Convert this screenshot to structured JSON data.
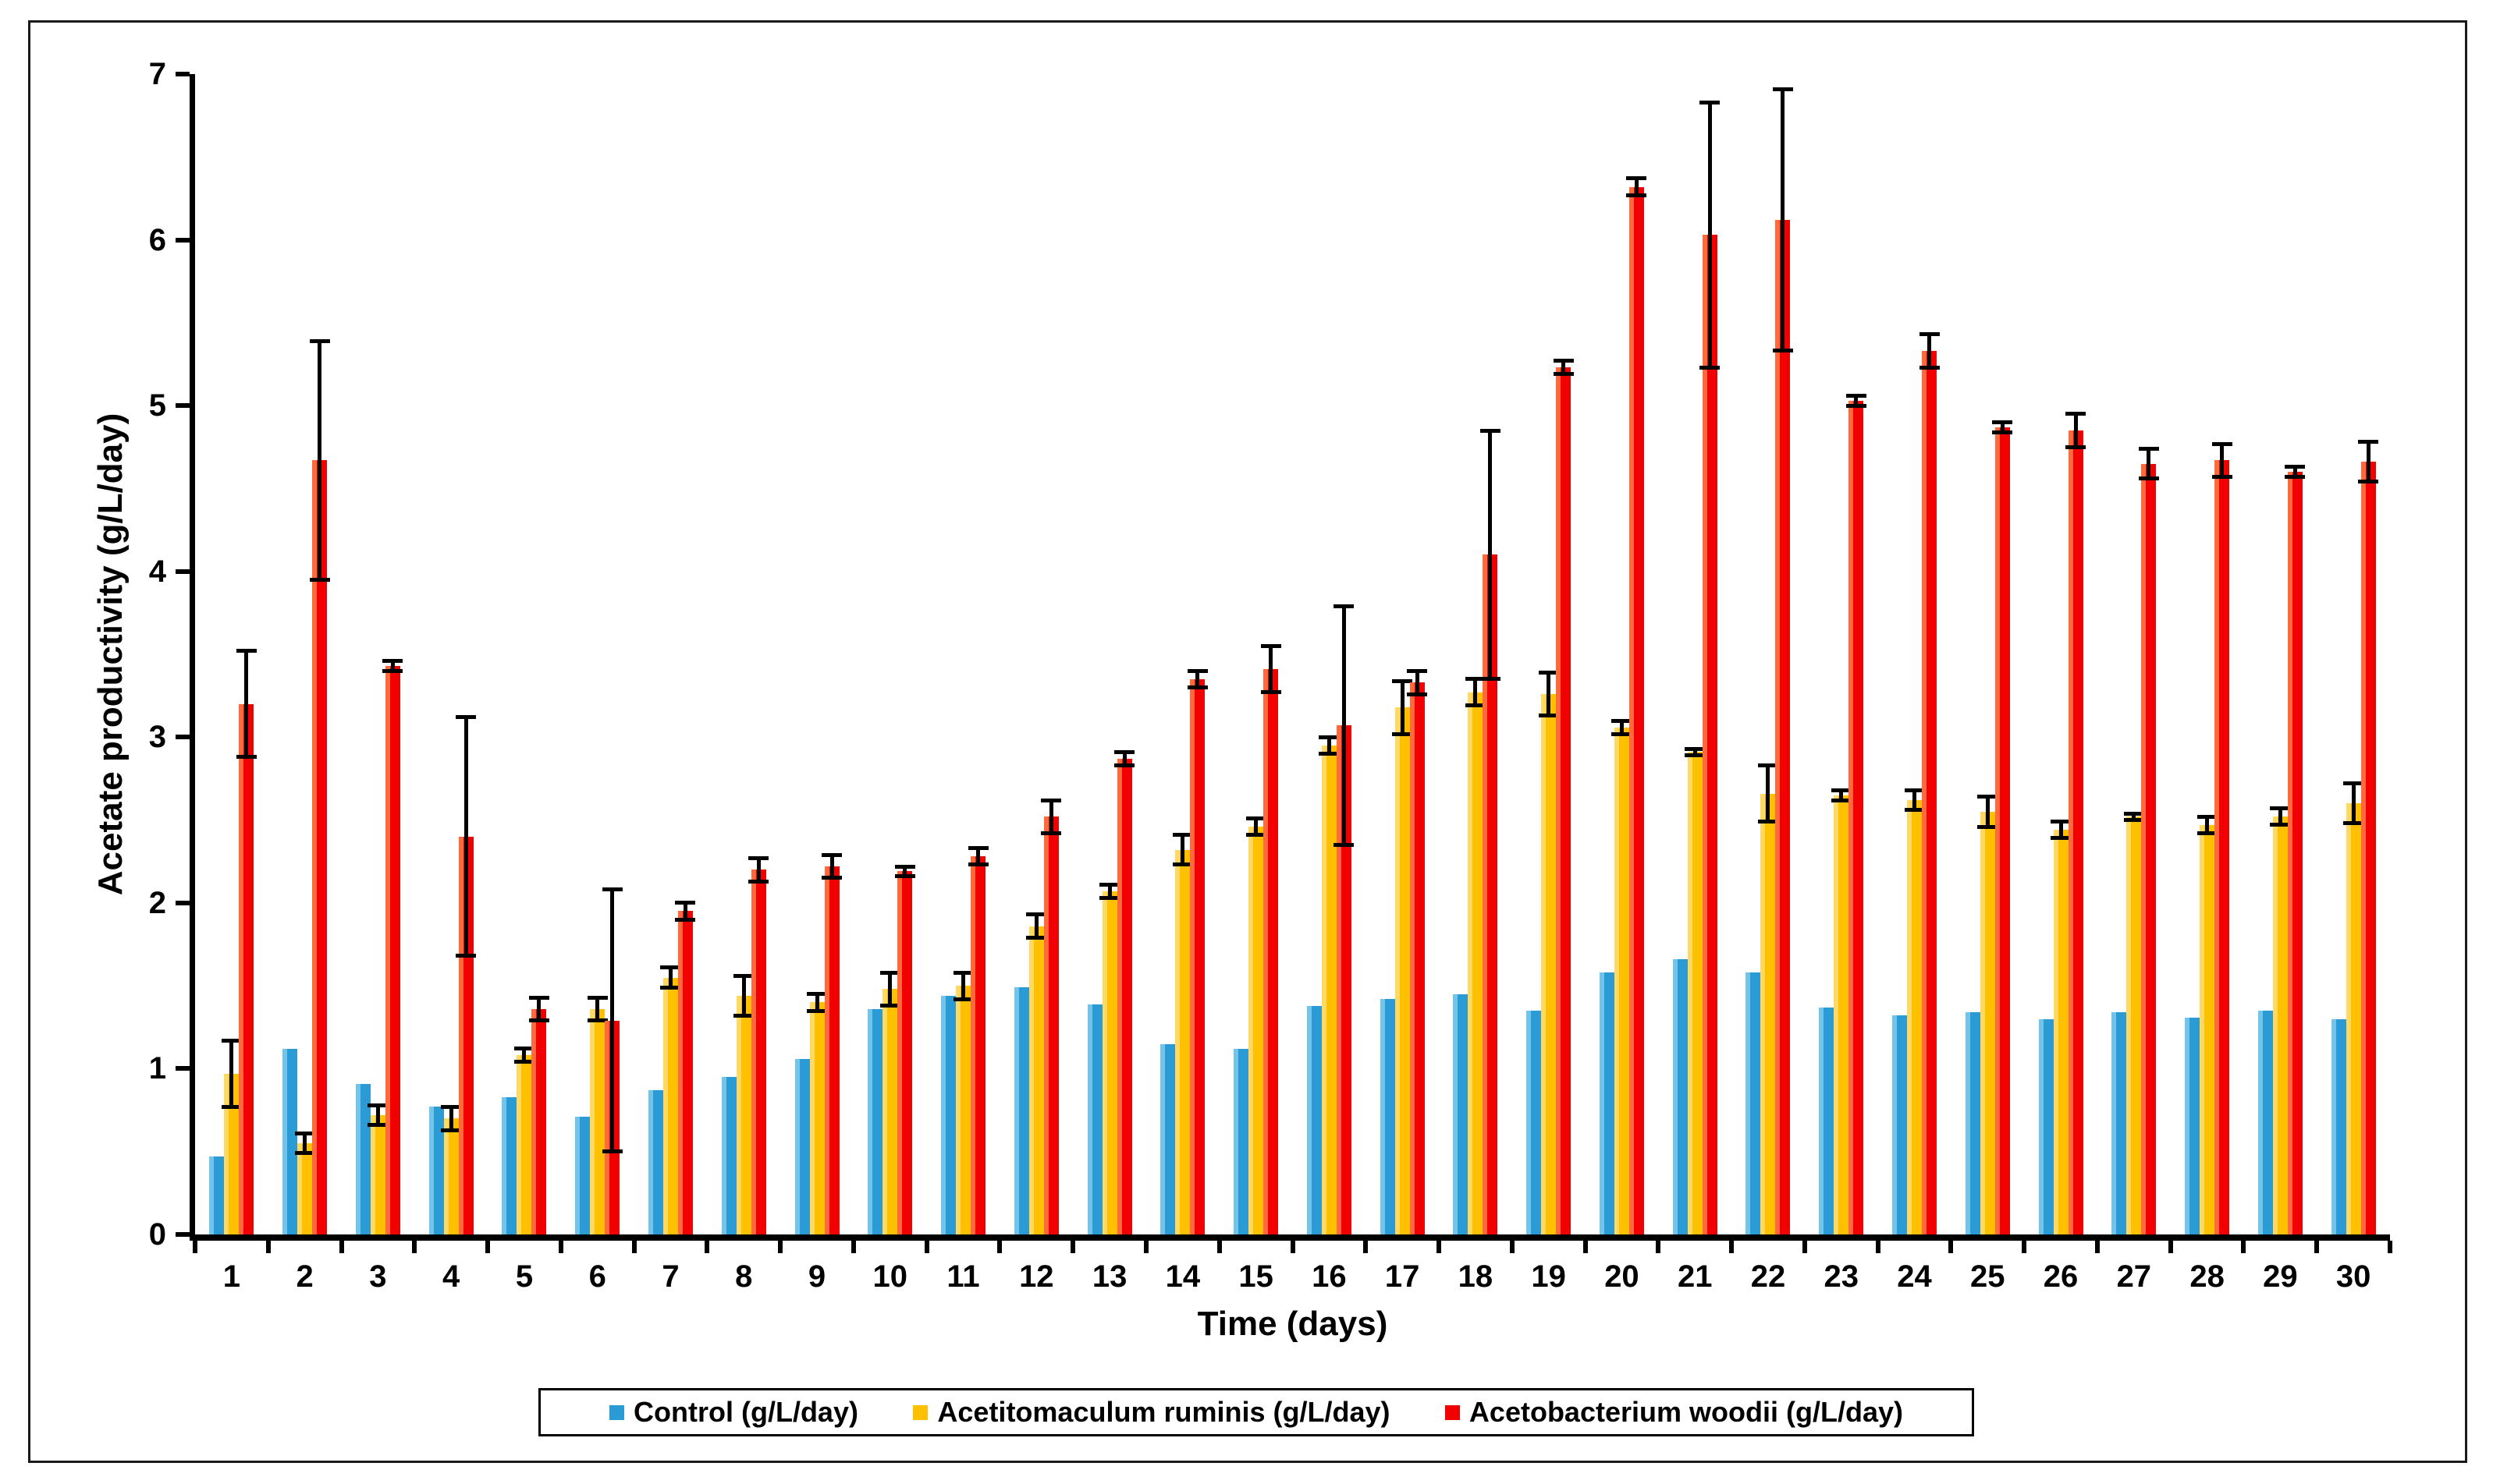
{
  "figure": {
    "background": "#ffffff",
    "border_color": "#1a1a1a",
    "text_color": "#000000"
  },
  "chart_data": {
    "type": "bar",
    "title": "",
    "xlabel": "Time (days)",
    "ylabel": "Acetate productivity (g/L/day)",
    "ylim": [
      0,
      7
    ],
    "yticks": [
      0,
      1,
      2,
      3,
      4,
      5,
      6,
      7
    ],
    "grid": false,
    "legend_position": "bottom",
    "error_bar_color": "#000000",
    "categories": [
      "1",
      "2",
      "3",
      "4",
      "5",
      "6",
      "7",
      "8",
      "9",
      "10",
      "11",
      "12",
      "13",
      "14",
      "15",
      "16",
      "17",
      "18",
      "19",
      "20",
      "21",
      "22",
      "23",
      "24",
      "25",
      "26",
      "27",
      "28",
      "29",
      "30"
    ],
    "series": [
      {
        "name": "Control (g/L/day)",
        "color": "#2B9BD5",
        "color_light": "#74C3E8",
        "values": [
          0.47,
          1.12,
          0.91,
          0.77,
          0.83,
          0.71,
          0.87,
          0.95,
          1.06,
          1.36,
          1.44,
          1.49,
          1.39,
          1.15,
          1.12,
          1.38,
          1.42,
          1.45,
          1.35,
          1.58,
          1.66,
          1.58,
          1.37,
          1.32,
          1.34,
          1.3,
          1.34,
          1.31,
          1.35,
          1.3
        ],
        "errors": [
          0,
          0,
          0,
          0,
          0,
          0,
          0,
          0,
          0,
          0,
          0,
          0,
          0,
          0,
          0,
          0,
          0,
          0,
          0,
          0,
          0,
          0,
          0,
          0,
          0,
          0,
          0,
          0,
          0,
          0
        ]
      },
      {
        "name": "Acetitomaculum ruminis (g/L/day)",
        "color": "#FFC000",
        "color_light": "#FFD965",
        "values": [
          0.97,
          0.55,
          0.72,
          0.7,
          1.08,
          1.36,
          1.55,
          1.44,
          1.4,
          1.48,
          1.5,
          1.86,
          2.07,
          2.32,
          2.46,
          2.95,
          3.18,
          3.27,
          3.26,
          3.06,
          2.91,
          2.66,
          2.65,
          2.62,
          2.55,
          2.44,
          2.52,
          2.47,
          2.52,
          2.6
        ],
        "errors": [
          0.2,
          0.06,
          0.06,
          0.07,
          0.04,
          0.07,
          0.06,
          0.12,
          0.05,
          0.1,
          0.08,
          0.07,
          0.04,
          0.09,
          0.05,
          0.05,
          0.16,
          0.08,
          0.13,
          0.04,
          0.02,
          0.17,
          0.03,
          0.06,
          0.09,
          0.05,
          0.02,
          0.05,
          0.05,
          0.12
        ]
      },
      {
        "name": "Acetobacterium woodii (g/L/day)",
        "color": "#F20000",
        "color_light": "#FF6A3C",
        "values": [
          3.2,
          4.67,
          3.43,
          2.4,
          1.36,
          1.29,
          1.95,
          2.2,
          2.22,
          2.19,
          2.28,
          2.52,
          2.87,
          3.35,
          3.41,
          3.07,
          3.33,
          4.1,
          5.23,
          6.32,
          6.03,
          6.12,
          5.03,
          5.33,
          4.87,
          4.85,
          4.65,
          4.67,
          4.6,
          4.66
        ],
        "errors": [
          0.32,
          0.72,
          0.03,
          0.72,
          0.07,
          0.79,
          0.05,
          0.07,
          0.07,
          0.03,
          0.05,
          0.1,
          0.04,
          0.05,
          0.14,
          0.72,
          0.07,
          0.75,
          0.04,
          0.05,
          0.8,
          0.79,
          0.03,
          0.1,
          0.03,
          0.1,
          0.09,
          0.1,
          0.03,
          0.12
        ]
      }
    ]
  }
}
